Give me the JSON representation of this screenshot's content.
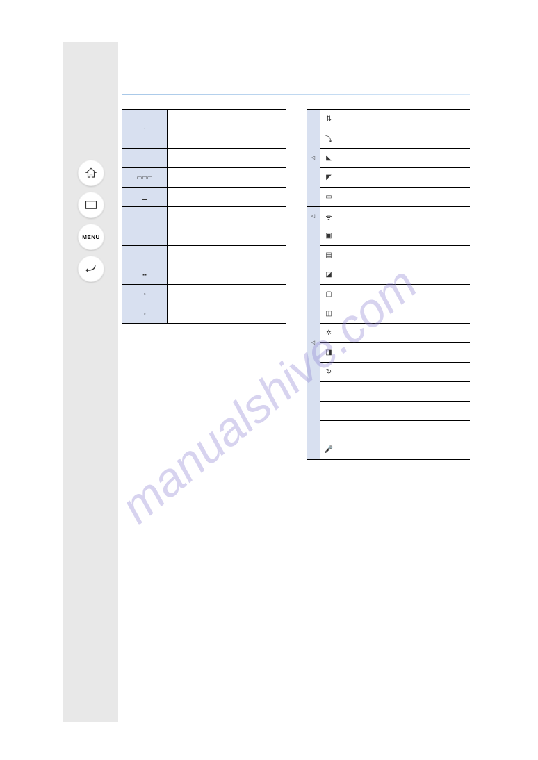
{
  "watermark_text": "manualshive.com",
  "page_number": "",
  "section": {
    "title": "",
    "rule_color": "#a8c8e8"
  },
  "nav": {
    "home_label": "home",
    "list_label": "list",
    "menu_label": "MENU",
    "back_label": "back"
  },
  "left_table": {
    "rows": [
      {
        "span": 2,
        "cat_width": "wide",
        "icon": "",
        "label": ""
      },
      {
        "cat_width": "wide",
        "icon": "",
        "label": ""
      },
      {
        "cat_width": "wide",
        "icons_html": "wb",
        "label": ""
      },
      {
        "cat_width": "wide",
        "icon": "▢",
        "label": ""
      },
      {
        "cat_width": "wide",
        "icon": "",
        "label": ""
      },
      {
        "cat_width": "wide",
        "icon": "",
        "label": ""
      },
      {
        "cat_width": "wide",
        "icon": "",
        "label": ""
      },
      {
        "cat_width": "wide",
        "icon": "⬚⬚",
        "label": ""
      },
      {
        "cat_width": "wide",
        "icon": "⬚",
        "label": ""
      },
      {
        "cat_width": "wide",
        "icon": "⬚",
        "label": ""
      }
    ]
  },
  "right_table": {
    "groups": [
      {
        "cat_span": 5,
        "cat_icon": "◁",
        "rows": [
          {
            "icon": "⇅",
            "label": ""
          },
          {
            "icon": "⤵",
            "label": ""
          },
          {
            "icon": "◣",
            "label": ""
          },
          {
            "icon": "◤",
            "label": ""
          },
          {
            "icon": "▭",
            "label": ""
          }
        ]
      },
      {
        "cat_span": 1,
        "cat_icon": "◁",
        "rows": [
          {
            "icon": "ᯤ",
            "label": ""
          }
        ]
      },
      {
        "cat_span": 12,
        "cat_icon": "◁",
        "rows": [
          {
            "icon": "▣",
            "label": ""
          },
          {
            "icon": "▤",
            "label": ""
          },
          {
            "icon": "◪",
            "label": ""
          },
          {
            "icon": "▢",
            "label": ""
          },
          {
            "icon": "◫",
            "label": ""
          },
          {
            "icon": "✲",
            "label": ""
          },
          {
            "icon": "◨",
            "label": ""
          },
          {
            "icon": "↻",
            "label": ""
          },
          {
            "icon": "",
            "label": ""
          },
          {
            "icon": "",
            "label": ""
          },
          {
            "icon": "",
            "label": ""
          },
          {
            "icon": "🎤",
            "label": ""
          }
        ]
      }
    ]
  },
  "colors": {
    "sidebar_bg": "#e8e8e8",
    "cat_bg": "#d8e0f0",
    "border": "#000000",
    "watermark": "rgba(140,130,210,0.35)"
  }
}
